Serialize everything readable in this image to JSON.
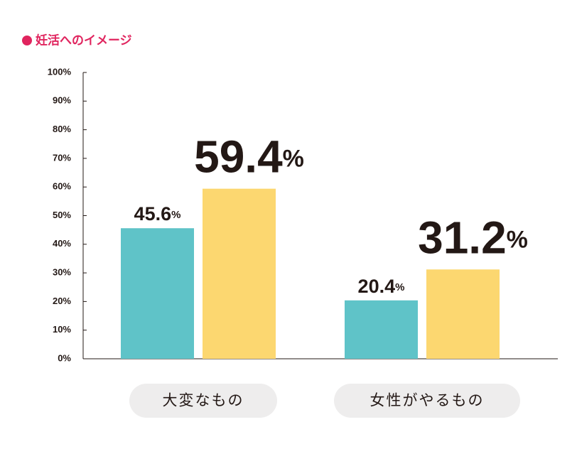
{
  "chart_data": {
    "type": "bar",
    "title": "妊活へのイメージ",
    "categories": [
      "大変なもの",
      "女性がやるもの"
    ],
    "series": [
      {
        "color": "#5fc3c8",
        "values": [
          45.6,
          20.4
        ],
        "value_labels": [
          "45.6%",
          "20.4%"
        ]
      },
      {
        "color": "#fcd770",
        "values": [
          59.4,
          31.2
        ],
        "value_labels": [
          "59.4%",
          "31.2%"
        ]
      }
    ],
    "ylim": [
      0,
      100
    ],
    "yticks": [
      {
        "value": 0,
        "label": "0%"
      },
      {
        "value": 10,
        "label": "10%"
      },
      {
        "value": 20,
        "label": "20%"
      },
      {
        "value": 30,
        "label": "30%"
      },
      {
        "value": 40,
        "label": "40%"
      },
      {
        "value": 50,
        "label": "50%"
      },
      {
        "value": 60,
        "label": "60%"
      },
      {
        "value": 70,
        "label": "70%"
      },
      {
        "value": 80,
        "label": "80%"
      },
      {
        "value": 90,
        "label": "90%"
      },
      {
        "value": 100,
        "label": "100%"
      }
    ],
    "title_color": "#e0245e"
  }
}
